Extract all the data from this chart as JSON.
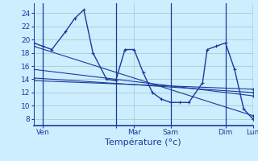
{
  "background_color": "#cceeff",
  "line_color": "#1a3a9c",
  "grid_color": "#aacccc",
  "xlabel": "Température (°c)",
  "xlim": [
    0,
    48
  ],
  "ylim": [
    7,
    25.5
  ],
  "yticks": [
    8,
    10,
    12,
    14,
    16,
    18,
    20,
    22,
    24
  ],
  "xtick_positions": [
    2,
    18,
    22,
    30,
    42,
    48
  ],
  "xtick_labels": [
    "Ven",
    "",
    "Mar",
    "Sam",
    "Dim",
    "Lun"
  ],
  "vlines_x": [
    2,
    18,
    30,
    42,
    48
  ],
  "series0": [
    [
      0,
      19.5
    ],
    [
      2,
      19.0
    ],
    [
      4,
      18.5
    ],
    [
      7,
      21.2
    ],
    [
      9,
      23.2
    ],
    [
      11,
      24.5
    ],
    [
      13,
      18.0
    ],
    [
      16,
      14.0
    ],
    [
      18,
      13.8
    ],
    [
      20,
      18.5
    ],
    [
      22,
      18.5
    ],
    [
      24,
      15.0
    ],
    [
      26,
      12.0
    ],
    [
      28,
      11.0
    ],
    [
      30,
      10.5
    ],
    [
      32,
      10.5
    ],
    [
      34,
      10.5
    ],
    [
      37,
      13.5
    ],
    [
      38,
      18.5
    ],
    [
      40,
      19.0
    ],
    [
      42,
      19.5
    ],
    [
      44,
      15.5
    ],
    [
      46,
      9.5
    ],
    [
      48,
      8.0
    ]
  ],
  "trend_lines": [
    [
      [
        0,
        19.0
      ],
      [
        48,
        8.5
      ]
    ],
    [
      [
        0,
        15.5
      ],
      [
        48,
        11.5
      ]
    ],
    [
      [
        0,
        14.2
      ],
      [
        48,
        12.0
      ]
    ],
    [
      [
        0,
        13.8
      ],
      [
        48,
        12.5
      ]
    ]
  ]
}
